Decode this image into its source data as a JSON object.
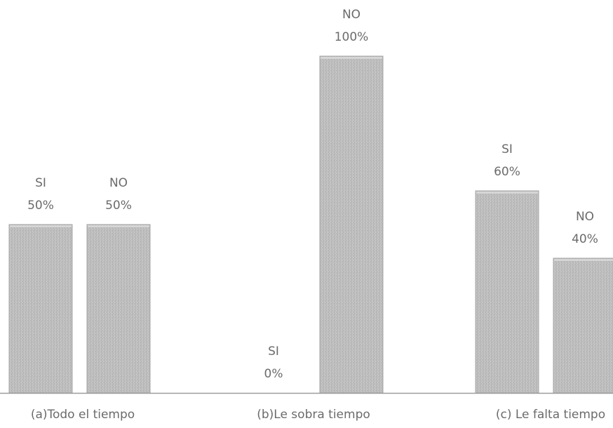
{
  "chart_data": {
    "type": "bar",
    "categories": [
      "(a)Todo el tiempo",
      "(b)Le sobra tiempo",
      "(c) Le falta tiempo"
    ],
    "series": [
      {
        "name": "SI",
        "values": [
          50,
          0,
          60
        ],
        "labels": [
          "50%",
          "0%",
          "60%"
        ]
      },
      {
        "name": "NO",
        "values": [
          50,
          100,
          40
        ],
        "labels": [
          "50%",
          "100%",
          "40%"
        ]
      }
    ],
    "ylim": [
      0,
      100
    ],
    "grid": false,
    "legend": "none",
    "colors": {
      "bar_fill": "#b8b8b8",
      "bar_stroke": "#a6a6a6",
      "axis": "#9c9c9c",
      "text": "#6b6b6b"
    }
  }
}
